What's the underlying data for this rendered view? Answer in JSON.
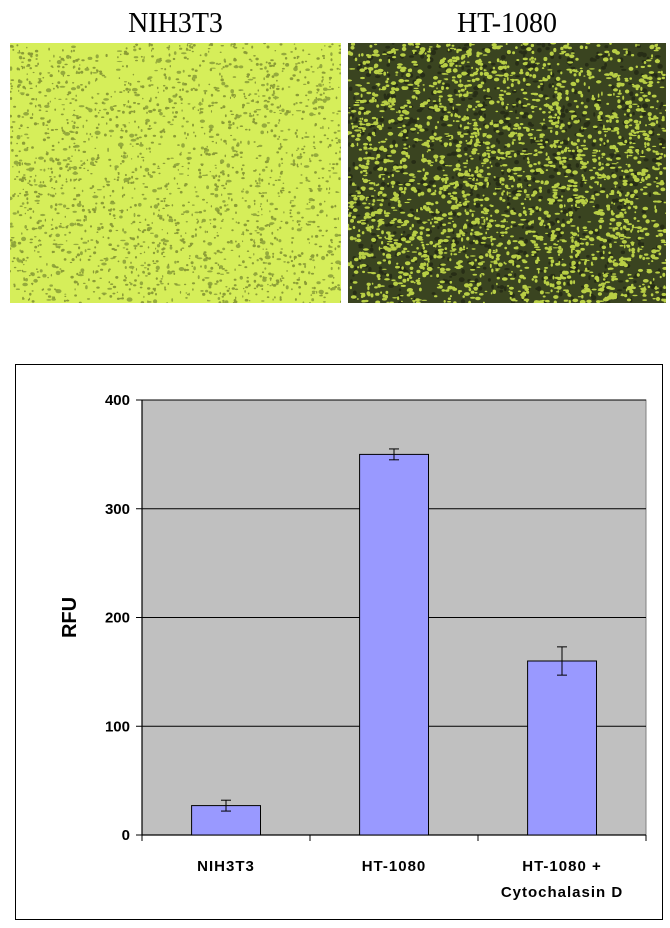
{
  "panels": {
    "left_title": "NIH3T3",
    "right_title": "HT-1080"
  },
  "colors": {
    "plot_bg": "#c0c0c0",
    "bar_fill": "#9999ff",
    "gridline": "#000000",
    "micro_light_bg": "#d6ee5a",
    "micro_dark_bg": "#3a4420"
  },
  "chart_data": {
    "type": "bar",
    "categories": [
      "NIH3T3",
      "HT-1080",
      "HT-1080 + Cytochalasin D"
    ],
    "category_lines": [
      [
        "NIH3T3"
      ],
      [
        "HT-1080"
      ],
      [
        "HT-1080 +",
        "Cytochalasin D"
      ]
    ],
    "values": [
      27,
      350,
      160
    ],
    "errors": [
      5,
      5,
      13
    ],
    "ylabel": "RFU",
    "xlabel": "",
    "title": "",
    "ylim": [
      0,
      400
    ],
    "yticks": [
      0,
      100,
      200,
      300,
      400
    ],
    "grid": true,
    "legend": "none"
  }
}
